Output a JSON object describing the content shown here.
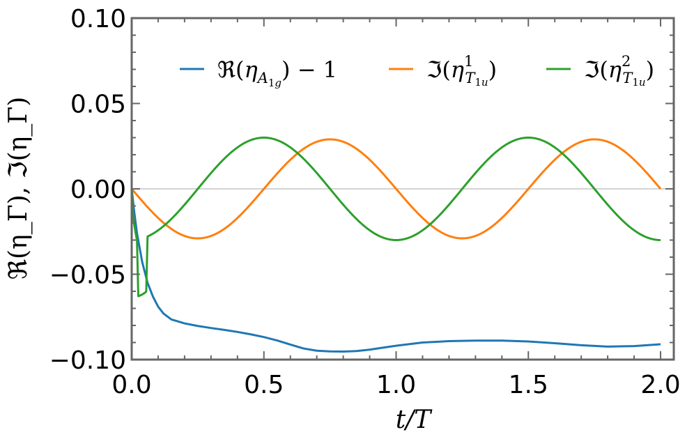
{
  "chart_data": {
    "type": "line",
    "xlabel": "t/T",
    "ylabel": "ℜ(η_Γ), ℑ(η_Γ)",
    "xlim": [
      0,
      2.05
    ],
    "ylim": [
      -0.1,
      0.1
    ],
    "xticks": [
      0.0,
      0.5,
      1.0,
      1.5,
      2.0
    ],
    "xtick_labels": [
      "0.0",
      "0.5",
      "1.0",
      "1.5",
      "2.0"
    ],
    "yticks": [
      0.1,
      0.05,
      0.0,
      -0.05,
      -0.1
    ],
    "ytick_labels": [
      "0.10",
      "0.05",
      "0.00",
      "−0.05",
      "−0.10"
    ],
    "grid": false,
    "zero_line": true,
    "legend_position": "top",
    "series": [
      {
        "name": "ℜ(η_{A_{1g}}) − 1",
        "color": "#1f77b4",
        "x": [
          0,
          0.01,
          0.02,
          0.04,
          0.06,
          0.08,
          0.1,
          0.12,
          0.15,
          0.2,
          0.25,
          0.3,
          0.35,
          0.4,
          0.45,
          0.5,
          0.55,
          0.6,
          0.65,
          0.7,
          0.75,
          0.8,
          0.85,
          0.9,
          0.95,
          1.0,
          1.1,
          1.2,
          1.3,
          1.4,
          1.5,
          1.6,
          1.7,
          1.8,
          1.9,
          2.0
        ],
        "y": [
          0.0,
          -0.014,
          -0.026,
          -0.043,
          -0.055,
          -0.063,
          -0.069,
          -0.073,
          -0.0765,
          -0.0788,
          -0.0803,
          -0.0815,
          -0.0826,
          -0.0838,
          -0.0852,
          -0.0868,
          -0.0888,
          -0.0912,
          -0.0935,
          -0.0948,
          -0.0952,
          -0.0953,
          -0.095,
          -0.0942,
          -0.093,
          -0.0919,
          -0.09,
          -0.0892,
          -0.0889,
          -0.0889,
          -0.0894,
          -0.0904,
          -0.0916,
          -0.0924,
          -0.0921,
          -0.091
        ]
      },
      {
        "name": "ℑ(η¹_{T_{1u}})",
        "color": "#ff7f0e",
        "amplitude": 0.029,
        "period_t_over_T": 1.0,
        "x": [
          0,
          0.125,
          0.25,
          0.375,
          0.5,
          0.625,
          0.75,
          0.875,
          1.0,
          1.125,
          1.25,
          1.375,
          1.5,
          1.625,
          1.75,
          1.875,
          2.0
        ],
        "y": [
          0.0,
          -0.0205,
          -0.029,
          -0.0205,
          0.0,
          0.0205,
          0.029,
          0.0205,
          0.0,
          -0.0205,
          -0.029,
          -0.0205,
          0.0,
          0.0205,
          0.029,
          0.0205,
          -0.001
        ]
      },
      {
        "name": "ℑ(η²_{T_{1u}})",
        "color": "#2ca02c",
        "amplitude": 0.03,
        "period_t_over_T": 1.0,
        "x": [
          0,
          0.01,
          0.025,
          0.06,
          0.125,
          0.25,
          0.375,
          0.5,
          0.625,
          0.75,
          0.875,
          1.0,
          1.125,
          1.25,
          1.375,
          1.5,
          1.625,
          1.75,
          1.875,
          2.0
        ],
        "y": [
          0.0,
          -0.018,
          -0.0315,
          -0.0305,
          -0.0215,
          0.0,
          0.0212,
          0.03,
          0.0212,
          0.0,
          -0.0212,
          -0.03,
          -0.0212,
          0.0,
          0.0212,
          0.03,
          0.0212,
          0.0,
          -0.0212,
          -0.03
        ]
      }
    ]
  }
}
